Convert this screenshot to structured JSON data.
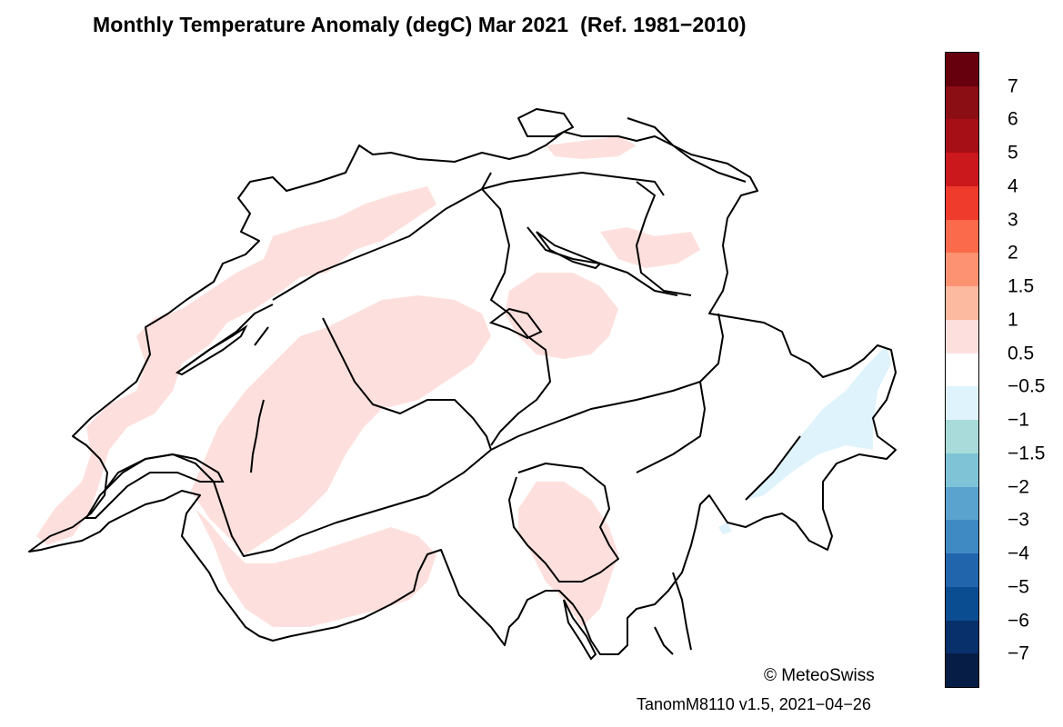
{
  "title": "Monthly Temperature Anomaly (degC) Mar 2021  (Ref. 1981−2010)",
  "credit": "© MeteoSwiss",
  "version": "TanomM8110 v1.5, 2021−04−26",
  "legend": {
    "labels": [
      "7",
      "6",
      "5",
      "4",
      "3",
      "2",
      "1.5",
      "1",
      "0.5",
      "−0.5",
      "−1",
      "−1.5",
      "−2",
      "−3",
      "−4",
      "−5",
      "−6",
      "−7"
    ],
    "colors": [
      "#67000d",
      "#8b0e14",
      "#a50f15",
      "#cb181d",
      "#ef3b2c",
      "#fb6a4a",
      "#fc9272",
      "#fcbba1",
      "#fde0dd",
      "#ffffff",
      "#def3fb",
      "#a8dbd9",
      "#7ec4d6",
      "#5aa3cf",
      "#3f8ac3",
      "#2166ac",
      "#0b4d91",
      "#08306b",
      "#061d45"
    ]
  },
  "map": {
    "region": "Switzerland",
    "anomaly_fill_warm": "#fde0dd",
    "anomaly_fill_cool": "#def3fb",
    "border_color": "#000000"
  }
}
